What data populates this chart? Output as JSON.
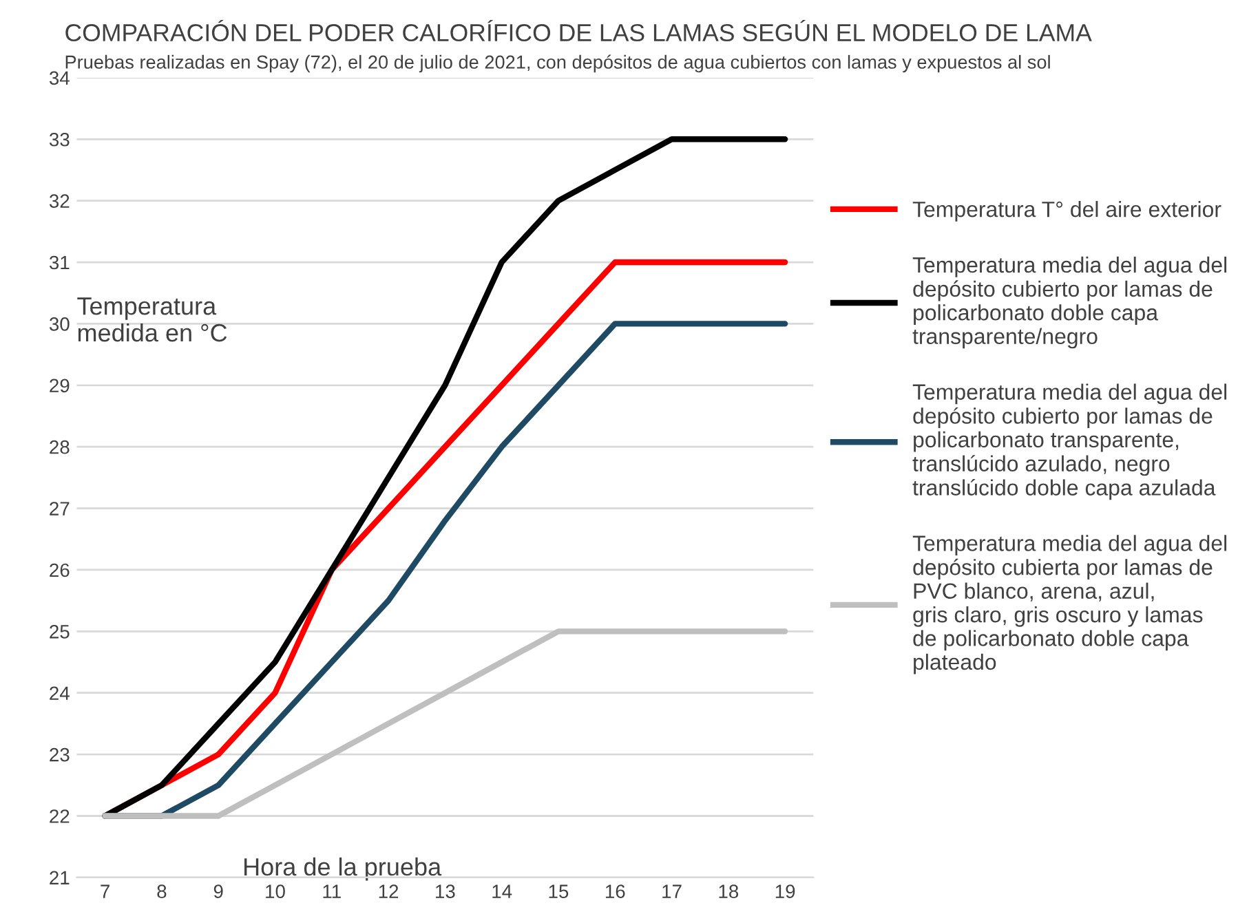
{
  "chart_data": {
    "type": "line",
    "title": "COMPARACIÓN DEL PODER CALORÍFICO DE LAS LAMAS SEGÚN EL MODELO DE LAMA",
    "subtitle": "Pruebas realizadas en Spay (72), el 20 de julio de 2021, con depósitos de agua cubiertos con lamas y expuestos al sol",
    "xlabel": "Hora de la prueba",
    "ylabel": "Temperatura\nmedida en °C",
    "x": [
      7,
      8,
      9,
      10,
      11,
      12,
      13,
      14,
      15,
      16,
      17,
      18,
      19
    ],
    "series": [
      {
        "name": "Temperatura T° del aire exterior",
        "color": "#ff0000",
        "values": [
          22,
          22.5,
          23,
          24,
          26,
          27,
          28,
          29,
          30,
          31,
          31,
          31,
          31
        ]
      },
      {
        "name": "Temperatura media del agua del\ndepósito cubierto por lamas de\npolicarbonato doble capa\ntransparente/negro",
        "color": "#000000",
        "values": [
          22,
          22.5,
          23.5,
          24.5,
          26,
          27.5,
          29,
          31,
          32,
          32.5,
          33,
          33,
          33
        ]
      },
      {
        "name": "Temperatura media del agua del\ndepósito cubierto por lamas de\npolicarbonato transparente,\ntranslúcido azulado, negro\ntranslúcido doble capa azulada",
        "color": "#1f4a63",
        "values": [
          22,
          22,
          22.5,
          23.5,
          24.5,
          25.5,
          26.8,
          28,
          29,
          30,
          30,
          30,
          30
        ]
      },
      {
        "name": "Temperatura media del agua del\ndepósito cubierta por lamas de\nPVC blanco, arena, azul,\ngris claro, gris oscuro y lamas\nde policarbonato doble capa\nplateado",
        "color": "#bfbfbf",
        "values": [
          22,
          22,
          22,
          22.5,
          23,
          23.5,
          24,
          24.5,
          25,
          25,
          25,
          25,
          25
        ]
      }
    ],
    "xlim": [
      6.5,
      19.5
    ],
    "xticks": [
      7,
      8,
      9,
      10,
      11,
      12,
      13,
      14,
      15,
      16,
      17,
      18,
      19
    ],
    "ylim": [
      21,
      34
    ],
    "yticks": [
      21,
      22,
      23,
      24,
      25,
      26,
      27,
      28,
      29,
      30,
      31,
      32,
      33,
      34
    ],
    "grid": "y",
    "legend": "right",
    "marker": "none",
    "line_style": "solid"
  }
}
